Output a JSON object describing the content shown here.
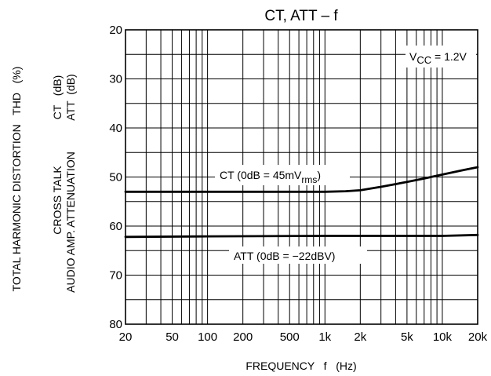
{
  "chart_data": {
    "type": "line",
    "title": "CT, ATT – f",
    "xlabel": "FREQUENCY   f   (Hz)",
    "ylabel_outer": "TOTAL HARMONIC DISTORTION   THD   (%)",
    "ylabel_ct": "CROSS TALK",
    "ylabel_att": "AUDIO AMP. ATTENUATION",
    "ylabel_units": [
      "CT   (dB)",
      "ATT  (dB)"
    ],
    "x_scale": "log",
    "xlim": [
      20,
      20000
    ],
    "ylim": [
      20,
      80
    ],
    "y_inverted": true,
    "x_ticks": [
      {
        "value": 20,
        "label": "20"
      },
      {
        "value": 50,
        "label": "50"
      },
      {
        "value": 100,
        "label": "100"
      },
      {
        "value": 200,
        "label": "200"
      },
      {
        "value": 500,
        "label": "500"
      },
      {
        "value": 1000,
        "label": "1k"
      },
      {
        "value": 2000,
        "label": "2k"
      },
      {
        "value": 5000,
        "label": "5k"
      },
      {
        "value": 10000,
        "label": "10k"
      },
      {
        "value": 20000,
        "label": "20k"
      }
    ],
    "y_ticks": [
      20,
      30,
      40,
      50,
      60,
      70,
      80
    ],
    "grid": true,
    "condition": "V_CC = 1.2V",
    "series": [
      {
        "name": "CT (0dB = 45mV_rms)",
        "x": [
          20,
          100,
          500,
          1000,
          1500,
          2000,
          3000,
          5000,
          7000,
          10000,
          15000,
          20000
        ],
        "y": [
          53,
          53,
          53,
          53,
          52.9,
          52.7,
          52.0,
          51.0,
          50.3,
          49.5,
          48.6,
          48
        ]
      },
      {
        "name": "ATT (0dB = −22dBV)",
        "x": [
          20,
          100,
          1000,
          10000,
          20000
        ],
        "y": [
          62.2,
          62.1,
          62,
          62,
          61.8
        ]
      }
    ]
  }
}
